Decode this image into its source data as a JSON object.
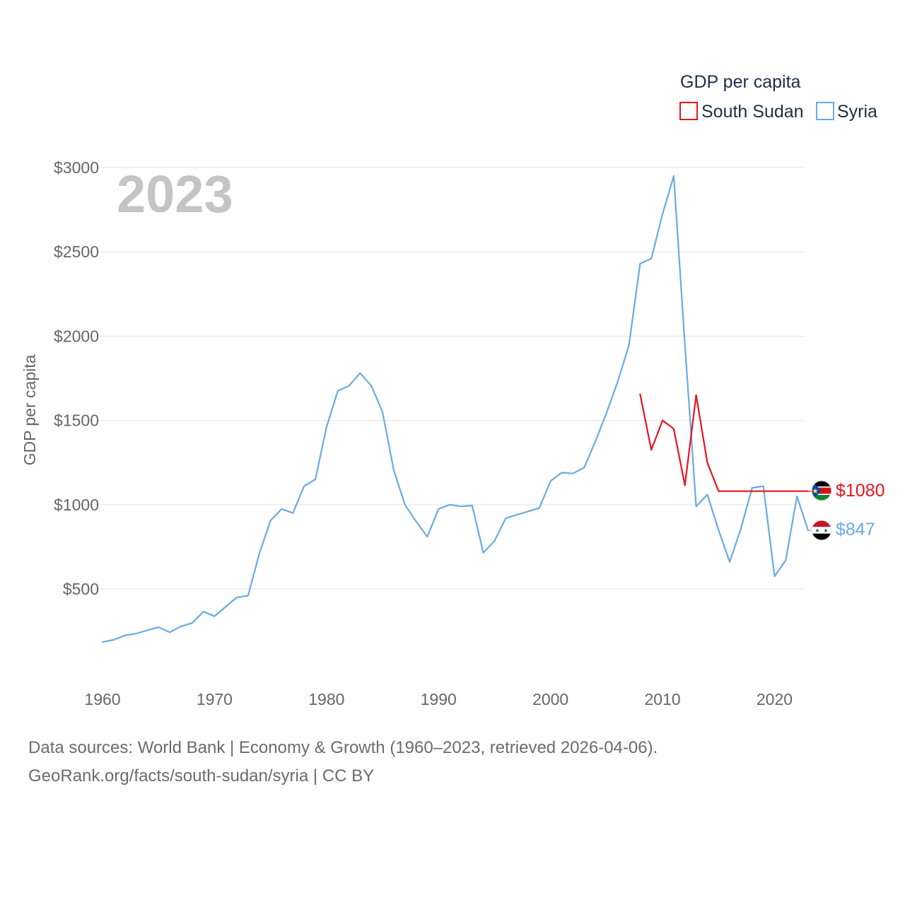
{
  "chart_data": {
    "type": "line",
    "title": "GDP per capita",
    "year_label": "2023",
    "xlabel": "",
    "ylabel": "GDP per capita",
    "xlim": [
      1960,
      2023
    ],
    "ylim": [
      0,
      3000
    ],
    "x_ticks": [
      1960,
      1970,
      1980,
      1990,
      2000,
      2010,
      2020
    ],
    "x_tick_labels": [
      "1960",
      "1970",
      "1980",
      "1990",
      "2000",
      "2010",
      "2020"
    ],
    "y_ticks": [
      500,
      1000,
      1500,
      2000,
      2500,
      3000
    ],
    "y_tick_labels": [
      "$500",
      "$1000",
      "$1500",
      "$2000",
      "$2500",
      "$3000"
    ],
    "grid": true,
    "legend_position": "top-right",
    "series": [
      {
        "name": "South Sudan",
        "color": "#e8141c",
        "end_label": "$1080",
        "flag": "south-sudan-flag",
        "x": [
          2008,
          2009,
          2010,
          2011,
          2012,
          2013,
          2014,
          2015,
          2016,
          2017,
          2018,
          2019,
          2020,
          2021,
          2022,
          2023
        ],
        "values": [
          1655,
          1325,
          1500,
          1450,
          1115,
          1650,
          1250,
          1080,
          1080,
          1080,
          1080,
          1080,
          1080,
          1080,
          1080,
          1080
        ]
      },
      {
        "name": "Syria",
        "color": "#6aaae4",
        "end_label": "$847",
        "flag": "syria-flag",
        "x": [
          1960,
          1961,
          1962,
          1963,
          1964,
          1965,
          1966,
          1967,
          1968,
          1969,
          1970,
          1971,
          1972,
          1973,
          1974,
          1975,
          1976,
          1977,
          1978,
          1979,
          1980,
          1981,
          1982,
          1983,
          1984,
          1985,
          1986,
          1987,
          1988,
          1989,
          1990,
          1991,
          1992,
          1993,
          1994,
          1995,
          1996,
          1997,
          1998,
          1999,
          2000,
          2001,
          2002,
          2003,
          2004,
          2005,
          2006,
          2007,
          2008,
          2009,
          2010,
          2011,
          2012,
          2013,
          2014,
          2015,
          2016,
          2017,
          2018,
          2019,
          2020,
          2021,
          2022,
          2023
        ],
        "values": [
          185,
          198,
          225,
          235,
          255,
          273,
          243,
          278,
          298,
          365,
          338,
          395,
          450,
          460,
          710,
          905,
          975,
          950,
          1110,
          1150,
          1460,
          1675,
          1705,
          1780,
          1705,
          1550,
          1205,
          1000,
          900,
          810,
          975,
          1000,
          990,
          995,
          715,
          785,
          920,
          940,
          960,
          980,
          1140,
          1190,
          1185,
          1220,
          1375,
          1545,
          1730,
          1945,
          2430,
          2460,
          2725,
          2950,
          1950,
          990,
          1060,
          850,
          660,
          860,
          1100,
          1110,
          575,
          670,
          1050,
          847
        ]
      }
    ]
  },
  "footer": {
    "source_line1": "Data sources: World Bank | Economy & Growth (1960–2023, retrieved 2026-04-06).",
    "source_line2": "GeoRank.org/facts/south-sudan/syria | CC BY"
  }
}
